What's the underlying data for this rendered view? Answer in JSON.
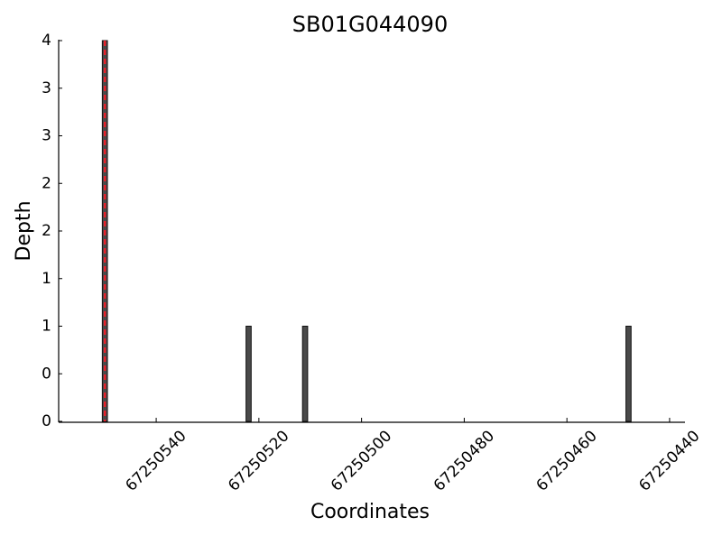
{
  "chart_data": {
    "type": "bar",
    "title": "SB01G044090",
    "x_label": "Coordinates",
    "y_label": "Depth",
    "x": [
      67250550,
      67250522,
      67250511,
      67250448
    ],
    "values": [
      4,
      1,
      1,
      1
    ],
    "color": "#4a4a4a",
    "highlight_x": 67250550,
    "highlight_color": "#e8202a",
    "xlim": [
      67250559,
      67250437
    ],
    "xticks": [
      67250540,
      67250520,
      67250500,
      67250480,
      67250460,
      67250440
    ],
    "ylim": [
      0,
      4
    ],
    "yticks": [
      {
        "value": 0,
        "label": "0"
      },
      {
        "value": 0.5,
        "label": "0"
      },
      {
        "value": 1,
        "label": "1"
      },
      {
        "value": 1.5,
        "label": "1"
      },
      {
        "value": 2,
        "label": "2"
      },
      {
        "value": 2.5,
        "label": "2"
      },
      {
        "value": 3,
        "label": "3"
      },
      {
        "value": 3.5,
        "label": "3"
      },
      {
        "value": 4,
        "label": "4"
      }
    ]
  }
}
